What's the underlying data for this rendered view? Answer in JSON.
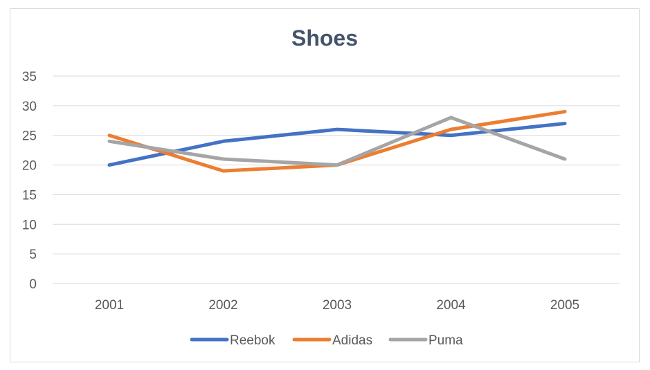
{
  "chart_data": {
    "type": "line",
    "title": "Shoes",
    "categories": [
      "2001",
      "2002",
      "2003",
      "2004",
      "2005"
    ],
    "ylim": [
      0,
      35
    ],
    "yticks": [
      0,
      5,
      10,
      15,
      20,
      25,
      30,
      35
    ],
    "grid": true,
    "legend_position": "bottom",
    "series": [
      {
        "name": "Reebok",
        "color": "#4472c4",
        "values": [
          20,
          24,
          26,
          25,
          27
        ]
      },
      {
        "name": "Adidas",
        "color": "#ed7d31",
        "values": [
          25,
          19,
          20,
          26,
          29
        ]
      },
      {
        "name": "Puma",
        "color": "#a5a5a5",
        "values": [
          24,
          21,
          20,
          28,
          21
        ]
      }
    ]
  }
}
